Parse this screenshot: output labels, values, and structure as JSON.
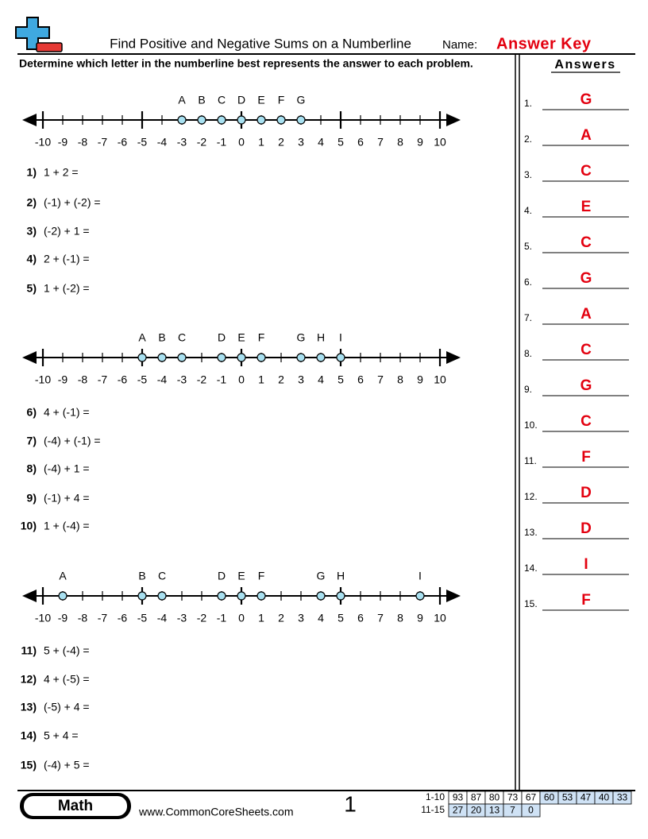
{
  "header": {
    "title": "Find Positive and Negative Sums on a Numberline",
    "name_label": "Name:",
    "name_value": "Answer Key"
  },
  "instructions": "Determine which letter in the numberline best represents the answer to each problem.",
  "sections": [
    {
      "numberline": {
        "ticks": [
          "-10",
          "-9",
          "-8",
          "-7",
          "-6",
          "-5",
          "-4",
          "-3",
          "-2",
          "-1",
          "0",
          "1",
          "2",
          "3",
          "4",
          "5",
          "6",
          "7",
          "8",
          "9",
          "10"
        ],
        "letters": [
          "A",
          "B",
          "C",
          "D",
          "E",
          "F",
          "G"
        ]
      },
      "problems": [
        {
          "number": "1)",
          "text": "1 + 2 ="
        },
        {
          "number": "2)",
          "text": "(-1) + (-2) ="
        },
        {
          "number": "3)",
          "text": "(-2) + 1 ="
        },
        {
          "number": "4)",
          "text": "2 + (-1) ="
        },
        {
          "number": "5)",
          "text": "1 + (-2) ="
        }
      ]
    },
    {
      "numberline": {
        "ticks": [
          "-10",
          "-9",
          "-8",
          "-7",
          "-6",
          "-5",
          "-4",
          "-3",
          "-2",
          "-1",
          "0",
          "1",
          "2",
          "3",
          "4",
          "5",
          "6",
          "7",
          "8",
          "9",
          "10"
        ],
        "letters": [
          "A",
          "B",
          "C",
          "D",
          "E",
          "F",
          "G",
          "H",
          "I"
        ]
      },
      "problems": [
        {
          "number": "6)",
          "text": "4 + (-1) ="
        },
        {
          "number": "7)",
          "text": "(-4) + (-1) ="
        },
        {
          "number": "8)",
          "text": "(-4) + 1 ="
        },
        {
          "number": "9)",
          "text": "(-1) + 4 ="
        },
        {
          "number": "10)",
          "text": "1 + (-4) ="
        }
      ]
    },
    {
      "numberline": {
        "ticks": [
          "-10",
          "-9",
          "-8",
          "-7",
          "-6",
          "-5",
          "-4",
          "-3",
          "-2",
          "-1",
          "0",
          "1",
          "2",
          "3",
          "4",
          "5",
          "6",
          "7",
          "8",
          "9",
          "10"
        ],
        "letters": [
          "A",
          "B",
          "C",
          "D",
          "E",
          "F",
          "G",
          "H",
          "I"
        ]
      },
      "problems": [
        {
          "number": "11)",
          "text": "5 + (-4) ="
        },
        {
          "number": "12)",
          "text": "4 + (-5) ="
        },
        {
          "number": "13)",
          "text": "(-5) + 4 ="
        },
        {
          "number": "14)",
          "text": "5 + 4 ="
        },
        {
          "number": "15)",
          "text": "(-4) + 5 ="
        }
      ]
    }
  ],
  "answers": {
    "title": "Answers",
    "items": [
      {
        "number": "1.",
        "answer": "G"
      },
      {
        "number": "2.",
        "answer": "A"
      },
      {
        "number": "3.",
        "answer": "C"
      },
      {
        "number": "4.",
        "answer": "E"
      },
      {
        "number": "5.",
        "answer": "C"
      },
      {
        "number": "6.",
        "answer": "G"
      },
      {
        "number": "7.",
        "answer": "A"
      },
      {
        "number": "8.",
        "answer": "C"
      },
      {
        "number": "9.",
        "answer": "G"
      },
      {
        "number": "10.",
        "answer": "C"
      },
      {
        "number": "11.",
        "answer": "F"
      },
      {
        "number": "12.",
        "answer": "D"
      },
      {
        "number": "13.",
        "answer": "D"
      },
      {
        "number": "14.",
        "answer": "I"
      },
      {
        "number": "15.",
        "answer": "F"
      }
    ]
  },
  "footer": {
    "subject": "Math",
    "website": "www.CommonCoreSheets.com",
    "page": "1",
    "score_table": {
      "rows": [
        {
          "label": "1-10",
          "cells": [
            "93",
            "87",
            "80",
            "73",
            "67",
            "60",
            "53",
            "47",
            "40",
            "33"
          ]
        },
        {
          "label": "11-15",
          "cells": [
            "27",
            "20",
            "13",
            "7",
            "0"
          ]
        }
      ]
    }
  }
}
